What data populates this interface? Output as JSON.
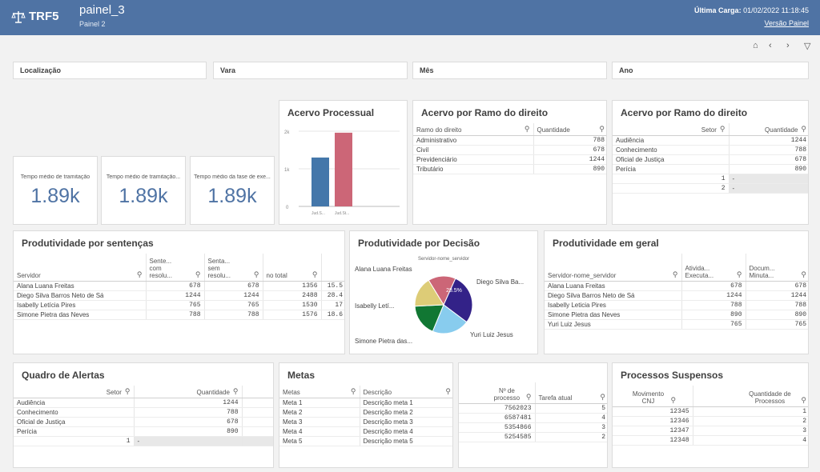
{
  "header": {
    "logo": "TRF5",
    "title": "painel_3",
    "subtitle": "Painel 2",
    "last_load_label": "Última Carga:",
    "last_load_value": "01/02/2022 11:18:45",
    "version_link": "Versão Painel"
  },
  "filters": [
    "Localização",
    "Vara",
    "Mês",
    "Ano"
  ],
  "kpis": [
    {
      "label": "Tempo médio de tramitação",
      "value": "1.89k"
    },
    {
      "label": "Tempo médio de tramitação...",
      "value": "1.89k"
    },
    {
      "label": "Tempo médio da fase de exe...",
      "value": "1.89k"
    }
  ],
  "chart_data": {
    "type": "bar",
    "title": "Acervo Processual",
    "categories": [
      "Jud.S...",
      "Jud.St..."
    ],
    "values": [
      1300,
      1960
    ],
    "colors": [
      "#4477aa",
      "#cc6677"
    ],
    "yticks": [
      "2k",
      "1k",
      "0"
    ],
    "ylim": [
      0,
      2000
    ]
  },
  "acervo_ramo": {
    "title": "Acervo por Ramo do direito",
    "col1": "Ramo do direito",
    "col2": "Quantidade",
    "rows": [
      [
        "Administrativo",
        "788"
      ],
      [
        "Civil",
        "678"
      ],
      [
        "Previdenciário",
        "1244"
      ],
      [
        "Tributário",
        "890"
      ]
    ]
  },
  "acervo_setor": {
    "title": "Acervo por Ramo do direito",
    "col1": "Setor",
    "col2": "Quantidade",
    "rows": [
      [
        "Audiência",
        "1244"
      ],
      [
        "Conhecimento",
        "788"
      ],
      [
        "Oficial de Justiça",
        "678"
      ],
      [
        "Perícia",
        "890"
      ]
    ],
    "extra": [
      [
        "1",
        "-"
      ],
      [
        "2",
        "-"
      ]
    ]
  },
  "produtividade_sentencas": {
    "title": "Produtividade por sentenças",
    "cols": [
      "Servidor",
      "Sente... com resolu...",
      "Senta... sem resolu...",
      "no total"
    ],
    "rows": [
      [
        "Alana Luana Freitas",
        "678",
        "678",
        "1356",
        "15.5"
      ],
      [
        "Diego Silva Barros Neto de Sá",
        "1244",
        "1244",
        "2488",
        "28.4"
      ],
      [
        "Isabelly Letícia Pires",
        "765",
        "765",
        "1530",
        "17"
      ],
      [
        "Simone Pietra das Neves",
        "788",
        "788",
        "1576",
        "18.6"
      ]
    ]
  },
  "produtividade_decisao": {
    "title": "Produtividade por Decisão",
    "legend_title": "Servidor-nome_servidor",
    "slice_label": "28.5%",
    "slices": [
      {
        "name": "Alana Luana Freitas",
        "value": 15.5,
        "color": "#cc6677"
      },
      {
        "name": "Diego Silva Ba...",
        "value": 28.5,
        "color": "#332288"
      },
      {
        "name": "Yuri Luiz Jesus",
        "value": 21,
        "color": "#88ccee"
      },
      {
        "name": "Simone Pietra das...",
        "value": 18,
        "color": "#117733"
      },
      {
        "name": "Isabelly Letí...",
        "value": 17,
        "color": "#ddcc77"
      }
    ]
  },
  "produtividade_geral": {
    "title": "Produtividade em geral",
    "cols": [
      "Servidor-nome_servidor",
      "Ativida... Executa...",
      "Docum... Minuta..."
    ],
    "rows": [
      [
        "Alana Luana Freitas",
        "678",
        "678"
      ],
      [
        "Diego Silva Barros Neto de Sá",
        "1244",
        "1244"
      ],
      [
        "Isabelly Leticia Pires",
        "788",
        "788"
      ],
      [
        "Simone Pietra das Neves",
        "890",
        "890"
      ],
      [
        "Yuri Luiz Jesus",
        "765",
        "765"
      ]
    ]
  },
  "alertas": {
    "title": "Quadro de Alertas",
    "col1": "Setor",
    "col2": "Quantidade",
    "rows": [
      [
        "Audiência",
        "1244"
      ],
      [
        "Conhecimento",
        "788"
      ],
      [
        "Oficial de Justiça",
        "678"
      ],
      [
        "Perícia",
        "890"
      ]
    ],
    "extra": [
      "1",
      "-"
    ]
  },
  "metas": {
    "title": "Metas",
    "col1": "Metas",
    "col2": "Descrição",
    "rows": [
      [
        "Meta 1",
        "Descrição meta 1"
      ],
      [
        "Meta 2",
        "Descrição meta 2"
      ],
      [
        "Meta 3",
        "Descrição meta 3"
      ],
      [
        "Meta 4",
        "Descrição meta 4"
      ],
      [
        "Meta 5",
        "Descrição meta 5"
      ]
    ]
  },
  "processos_tarefa": {
    "col1": "Nº de processo",
    "col2": "Tarefa atual",
    "rows": [
      [
        "7562023",
        "5"
      ],
      [
        "6587481",
        "4"
      ],
      [
        "5354866",
        "3"
      ],
      [
        "5254585",
        "2"
      ]
    ]
  },
  "suspensos": {
    "title": "Processos Suspensos",
    "col1": "Movimento CNJ",
    "col2": "Quantidade de Processos",
    "rows": [
      [
        "12345",
        "1"
      ],
      [
        "12346",
        "2"
      ],
      [
        "12347",
        "3"
      ],
      [
        "12348",
        "4"
      ]
    ]
  }
}
